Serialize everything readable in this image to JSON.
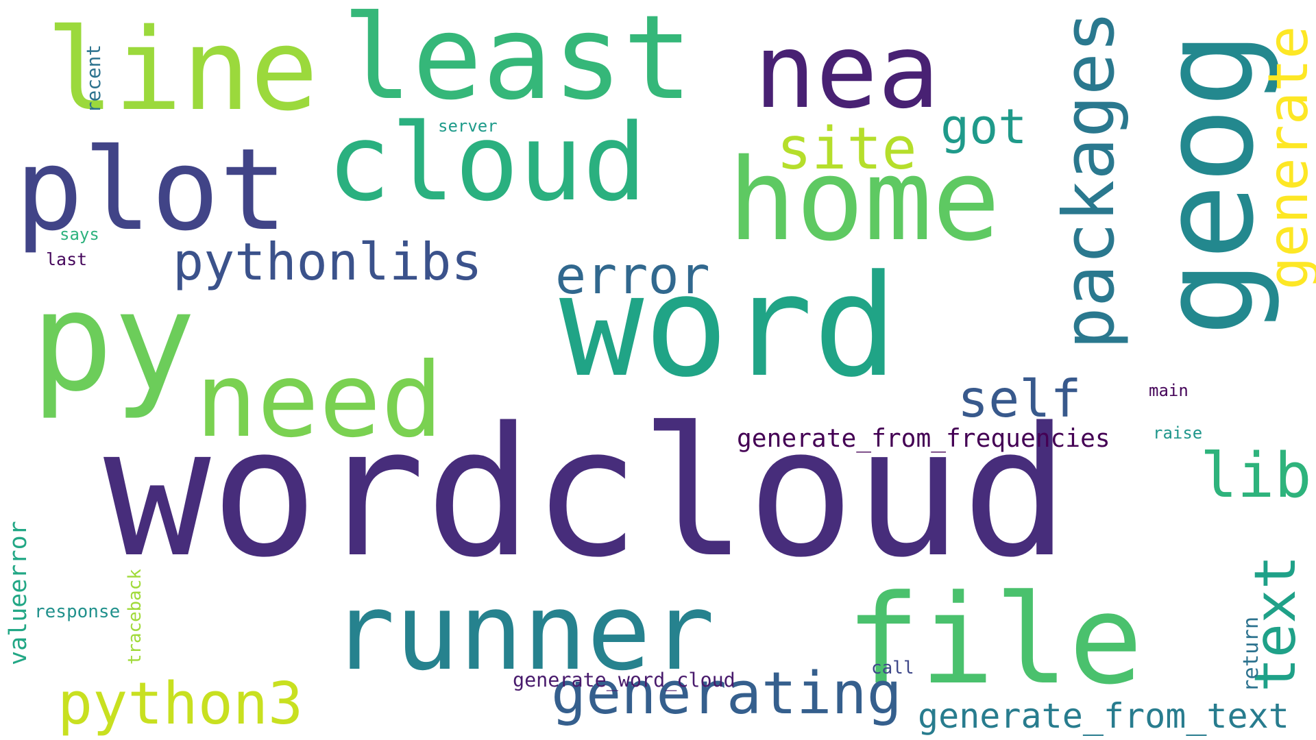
{
  "words": {
    "wordcloud": {
      "text": "wordcloud",
      "color": "#472d7b"
    },
    "word": {
      "text": "word",
      "color": "#20a486"
    },
    "nea": {
      "text": "nea",
      "color": "#482173"
    },
    "geog": {
      "text": "geog",
      "color": "#23888e"
    },
    "line": {
      "text": "line",
      "color": "#9bd93c"
    },
    "least": {
      "text": "least",
      "color": "#35b779"
    },
    "cloud": {
      "text": "cloud",
      "color": "#2ab07f"
    },
    "plot": {
      "text": "plot",
      "color": "#414487"
    },
    "home": {
      "text": "home",
      "color": "#5ec962"
    },
    "py": {
      "text": "py",
      "color": "#6ccd5a"
    },
    "need": {
      "text": "need",
      "color": "#7ad151"
    },
    "runner": {
      "text": "runner",
      "color": "#26828e"
    },
    "file": {
      "text": "file",
      "color": "#4ac16d"
    },
    "python3": {
      "text": "python3",
      "color": "#c8e020"
    },
    "generating": {
      "text": "generating",
      "color": "#355f8d"
    },
    "generate_from_text": {
      "text": "generate_from_text",
      "color": "#287c8e"
    },
    "packages": {
      "text": "packages",
      "color": "#2a788e"
    },
    "generate": {
      "text": "generate",
      "color": "#fde725"
    },
    "site": {
      "text": "site",
      "color": "#b5de2b"
    },
    "got": {
      "text": "got",
      "color": "#1f9a8a"
    },
    "pythonlibs": {
      "text": "pythonlibs",
      "color": "#3b528b"
    },
    "error": {
      "text": "error",
      "color": "#31688e"
    },
    "self": {
      "text": "self",
      "color": "#38598c"
    },
    "lib": {
      "text": "lib",
      "color": "#2eb37c"
    },
    "text": {
      "text": "text",
      "color": "#1fa188"
    },
    "generate_from_frequencies": {
      "text": "generate_from_frequencies",
      "color": "#440154"
    },
    "valueerror": {
      "text": "valueerror",
      "color": "#22a785"
    },
    "traceback": {
      "text": "traceback",
      "color": "#a0da39"
    },
    "response": {
      "text": "response",
      "color": "#21918c"
    },
    "generate_word_cloud": {
      "text": "generate_word_cloud",
      "color": "#481a6c"
    },
    "call": {
      "text": "call",
      "color": "#3f4889"
    },
    "return": {
      "text": "return",
      "color": "#2c728e"
    },
    "main": {
      "text": "main",
      "color": "#450559"
    },
    "raise": {
      "text": "raise",
      "color": "#1f968b"
    },
    "recent": {
      "text": "recent",
      "color": "#2c728e"
    },
    "server": {
      "text": "server",
      "color": "#1e9b8a"
    },
    "says": {
      "text": "says",
      "color": "#2db27d"
    },
    "last": {
      "text": "last",
      "color": "#46085c"
    }
  }
}
